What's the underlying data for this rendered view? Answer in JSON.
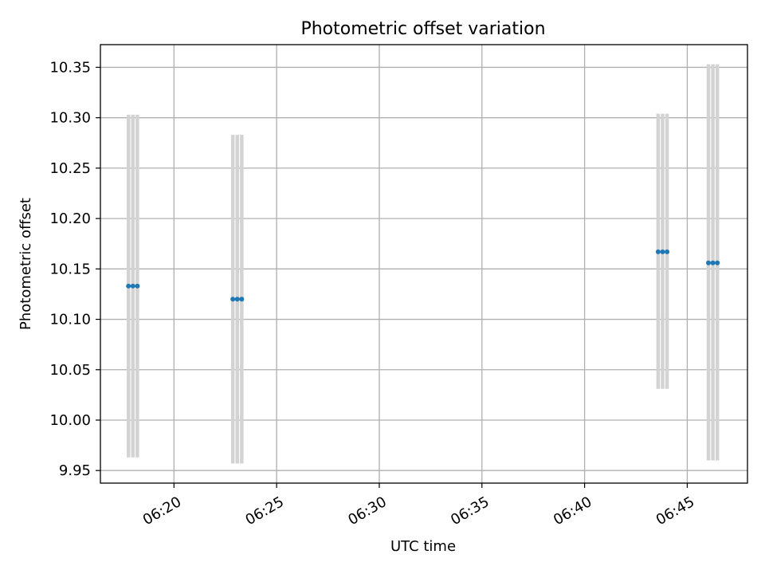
{
  "chart_data": {
    "type": "scatter",
    "title": "Photometric offset variation",
    "xlabel": "UTC time",
    "ylabel": "Photometric offset",
    "grid": true,
    "xlim": [
      "06:16:25",
      "06:47:56"
    ],
    "ylim": [
      9.9375,
      10.3725
    ],
    "x_ticks": [
      "06:20",
      "06:25",
      "06:30",
      "06:35",
      "06:40",
      "06:45"
    ],
    "y_ticks": [
      "9.95",
      "10.00",
      "10.05",
      "10.10",
      "10.15",
      "10.20",
      "10.25",
      "10.30",
      "10.35"
    ],
    "colors": {
      "points": "#1f77b4",
      "error_bars": "#d3d3d3",
      "grid": "#b0b0b0"
    },
    "groups": [
      {
        "x": [
          "06:17:47",
          "06:18:00",
          "06:18:13"
        ],
        "y": 10.133,
        "low": 9.963,
        "high": 10.303
      },
      {
        "x": [
          "06:22:52",
          "06:23:05",
          "06:23:18"
        ],
        "y": 10.12,
        "low": 9.957,
        "high": 10.283
      },
      {
        "x": [
          "06:43:35",
          "06:43:48",
          "06:44:01"
        ],
        "y": 10.167,
        "low": 10.031,
        "high": 10.304
      },
      {
        "x": [
          "06:46:02",
          "06:46:15",
          "06:46:28"
        ],
        "y": 10.156,
        "low": 9.96,
        "high": 10.353
      }
    ]
  }
}
